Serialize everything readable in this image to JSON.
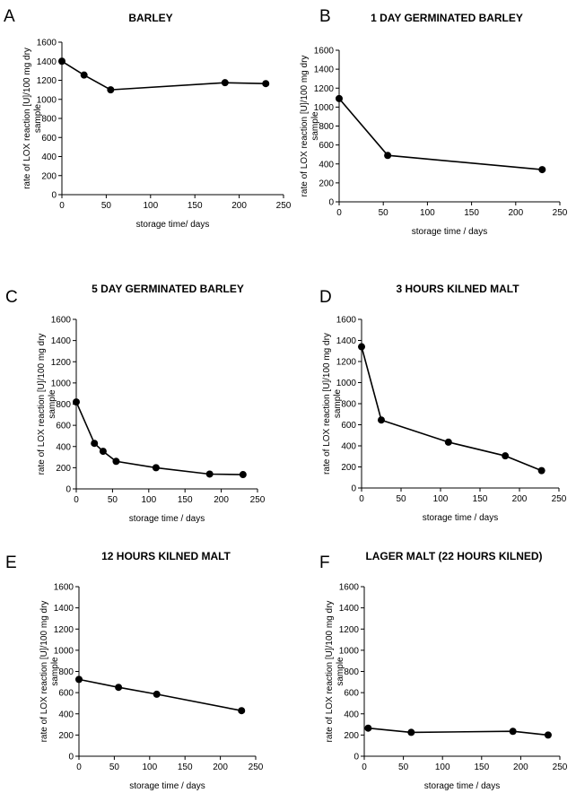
{
  "chart_data": [
    {
      "type": "line",
      "panel": "A",
      "title": "BARLEY",
      "xlabel": "storage time/ days",
      "ylabel_lines": [
        "rate of LOX reaction [U]/100 mg dry",
        "sample"
      ],
      "xlim": [
        0,
        250
      ],
      "ylim": [
        0,
        1600
      ],
      "xticks": [
        0,
        50,
        100,
        150,
        200,
        250
      ],
      "yticks": [
        0,
        200,
        400,
        600,
        800,
        1000,
        1200,
        1400,
        1600
      ],
      "x": [
        0,
        25,
        55,
        184,
        230
      ],
      "y": [
        1400,
        1255,
        1100,
        1175,
        1165
      ]
    },
    {
      "type": "line",
      "panel": "B",
      "title": "1 DAY GERMINATED BARLEY",
      "xlabel": "storage time / days",
      "ylabel_lines": [
        "rate of LOX reaction [U]/100 mg dry",
        "sample"
      ],
      "xlim": [
        0,
        250
      ],
      "ylim": [
        0,
        1600
      ],
      "xticks": [
        0,
        50,
        100,
        150,
        200,
        250
      ],
      "yticks": [
        0,
        200,
        400,
        600,
        800,
        1000,
        1200,
        1400,
        1600
      ],
      "x": [
        0,
        55,
        230
      ],
      "y": [
        1090,
        490,
        340
      ]
    },
    {
      "type": "line",
      "panel": "C",
      "title": "5 DAY GERMINATED BARLEY",
      "xlabel": "storage time / days",
      "ylabel_lines": [
        "rate of LOX reaction [U]/100 mg dry",
        "sample"
      ],
      "xlim": [
        0,
        250
      ],
      "ylim": [
        0,
        1600
      ],
      "xticks": [
        0,
        50,
        100,
        150,
        200,
        250
      ],
      "yticks": [
        0,
        200,
        400,
        600,
        800,
        1000,
        1200,
        1400,
        1600
      ],
      "x": [
        0,
        25,
        37,
        55,
        110,
        184,
        230
      ],
      "y": [
        820,
        430,
        355,
        260,
        200,
        140,
        135
      ]
    },
    {
      "type": "line",
      "panel": "D",
      "title": "3 HOURS KILNED MALT",
      "xlabel": "storage time / days",
      "ylabel_lines": [
        "rate of LOX reaction [U]/100 mg dry",
        "sample"
      ],
      "xlim": [
        0,
        250
      ],
      "ylim": [
        0,
        1600
      ],
      "xticks": [
        0,
        50,
        100,
        150,
        200,
        250
      ],
      "yticks": [
        0,
        200,
        400,
        600,
        800,
        1000,
        1200,
        1400,
        1600
      ],
      "x": [
        0,
        25,
        110,
        182,
        228
      ],
      "y": [
        1340,
        645,
        435,
        305,
        165
      ]
    },
    {
      "type": "line",
      "panel": "E",
      "title": "12 HOURS KILNED MALT",
      "xlabel": "storage time / days",
      "ylabel_lines": [
        "rate of LOX reaction [U]/100 mg dry",
        "sample"
      ],
      "xlim": [
        0,
        250
      ],
      "ylim": [
        0,
        1600
      ],
      "xticks": [
        0,
        50,
        100,
        150,
        200,
        250
      ],
      "yticks": [
        0,
        200,
        400,
        600,
        800,
        1000,
        1200,
        1400,
        1600
      ],
      "x": [
        0,
        56,
        110,
        230
      ],
      "y": [
        725,
        650,
        585,
        430
      ]
    },
    {
      "type": "line",
      "panel": "F",
      "title": "LAGER MALT (22 HOURS KILNED)",
      "xlabel": "storage time / days",
      "ylabel_lines": [
        "rate of LOX reaction [U]/100 mg dry",
        "sample"
      ],
      "xlim": [
        0,
        250
      ],
      "ylim": [
        0,
        1600
      ],
      "xticks": [
        0,
        50,
        100,
        150,
        200,
        250
      ],
      "yticks": [
        0,
        200,
        400,
        600,
        800,
        1000,
        1200,
        1400,
        1600
      ],
      "x": [
        5,
        60,
        190,
        235
      ],
      "y": [
        265,
        225,
        235,
        200
      ]
    }
  ]
}
